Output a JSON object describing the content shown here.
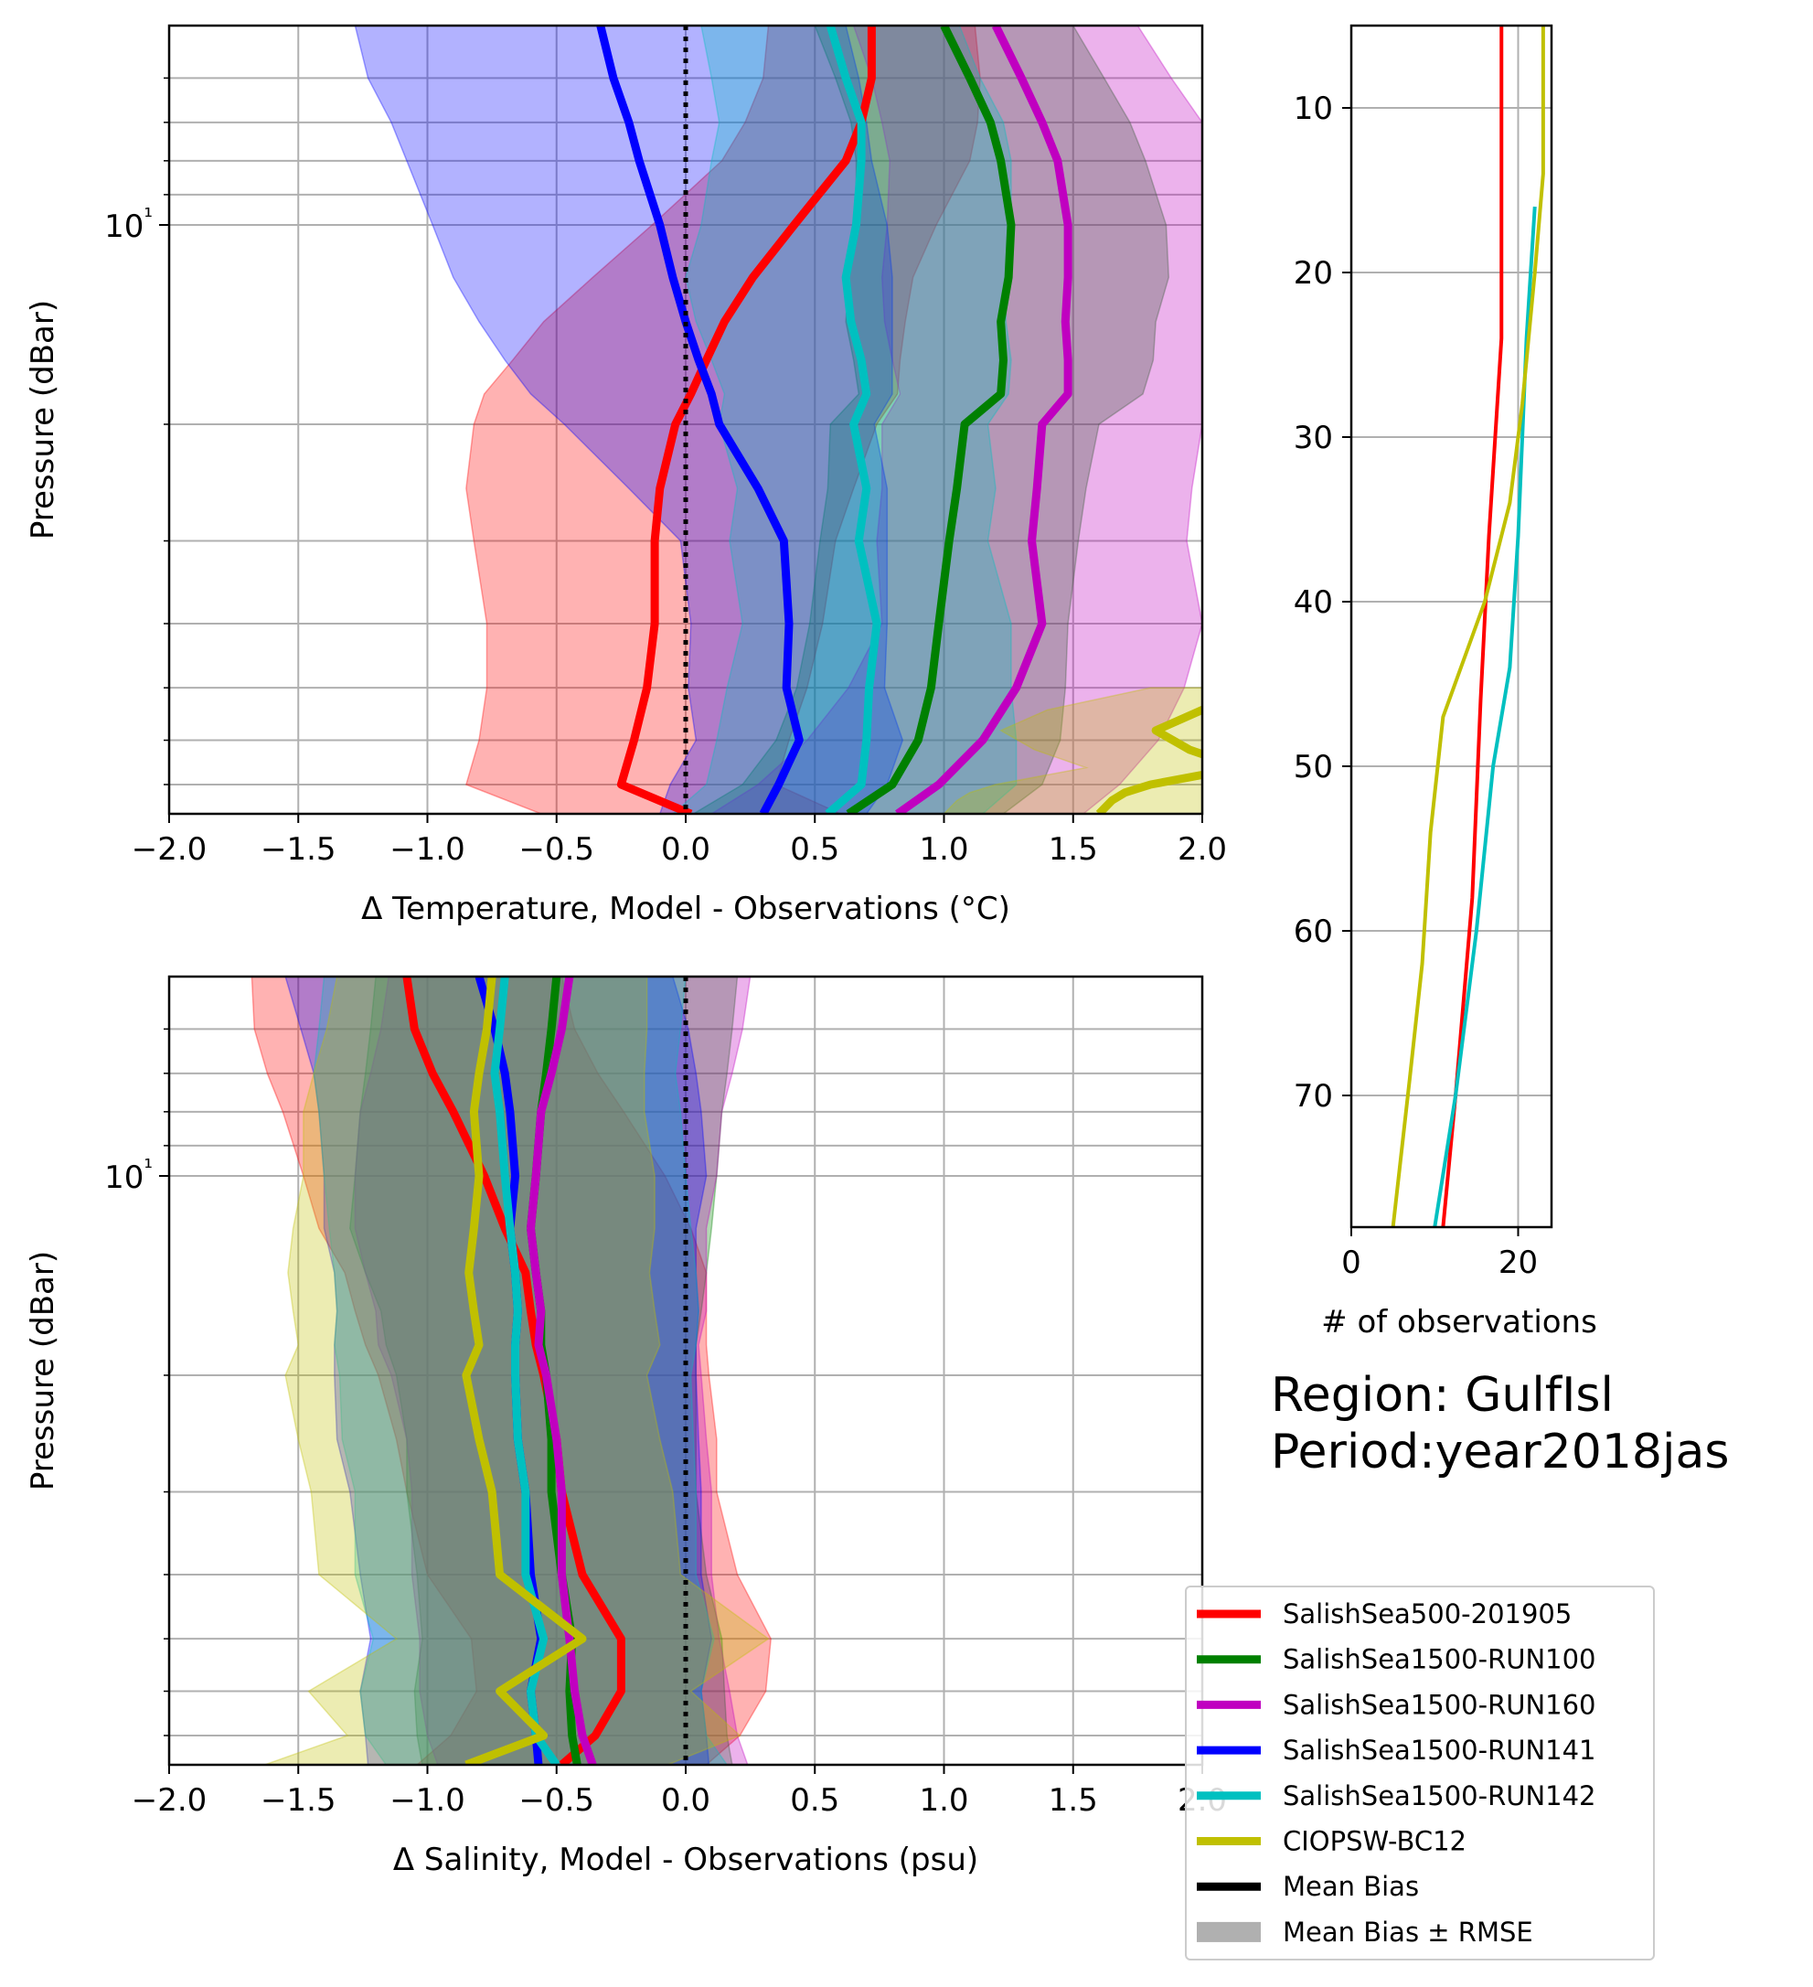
{
  "region_label": "Region: GulfIsl",
  "period_label": "Period:year2018jas",
  "legend": {
    "entries": [
      {
        "label": "SalishSea500-201905",
        "color": "#ff0000",
        "kind": "line"
      },
      {
        "label": "SalishSea1500-RUN100",
        "color": "#008000",
        "kind": "line"
      },
      {
        "label": "SalishSea1500-RUN160",
        "color": "#c000c0",
        "kind": "line"
      },
      {
        "label": "SalishSea1500-RUN141",
        "color": "#0000ff",
        "kind": "line"
      },
      {
        "label": "SalishSea1500-RUN142",
        "color": "#00c0c0",
        "kind": "line"
      },
      {
        "label": "CIOPSW-BC12",
        "color": "#c0c000",
        "kind": "line"
      },
      {
        "label": "Mean Bias",
        "color": "#000000",
        "kind": "line"
      },
      {
        "label": "Mean Bias ± RMSE",
        "color": "#b0b0b0",
        "kind": "patch"
      }
    ]
  },
  "chart_data": [
    {
      "type": "line",
      "xlabel": "Δ Temperature, Model - Observations (°C)",
      "ylabel": "Pressure (dBar)",
      "xlim": [
        -2.0,
        2.0
      ],
      "ylim": [
        77.5,
        5.0
      ],
      "yscale": "log",
      "ytick_label": "10¹",
      "xticks": [
        -2.0,
        -1.5,
        -1.0,
        -0.5,
        0.0,
        0.5,
        1.0,
        1.5,
        2.0
      ],
      "xtick_labels": [
        "−2.0",
        "−1.5",
        "−1.0",
        "−0.5",
        "0.0",
        "0.5",
        "1.0",
        "1.5",
        "2.0"
      ],
      "grid": true,
      "reference_line_x": 0.0,
      "series": [
        {
          "name": "SalishSea500-201905",
          "color": "#ff0000",
          "pressure": [
            5,
            6,
            7,
            8,
            10,
            12,
            14,
            16,
            18,
            20,
            25,
            30,
            40,
            50,
            60,
            70,
            77.5
          ],
          "bias": [
            0.72,
            0.72,
            0.68,
            0.62,
            0.42,
            0.26,
            0.15,
            0.08,
            0.02,
            -0.04,
            -0.1,
            -0.12,
            -0.12,
            -0.15,
            -0.2,
            -0.25,
            0.02
          ],
          "rmse": [
            0.4,
            0.42,
            0.45,
            0.48,
            0.55,
            0.62,
            0.7,
            0.75,
            0.8,
            0.78,
            0.75,
            0.7,
            0.65,
            0.62,
            0.6,
            0.6,
            0.58
          ]
        },
        {
          "name": "SalishSea1500-RUN100",
          "color": "#008000",
          "pressure": [
            5,
            6,
            7,
            8,
            10,
            12,
            14,
            16,
            18,
            20,
            25,
            30,
            40,
            50,
            60,
            70,
            77.5
          ],
          "bias": [
            1.0,
            1.1,
            1.18,
            1.22,
            1.26,
            1.25,
            1.22,
            1.23,
            1.22,
            1.08,
            1.05,
            1.02,
            0.98,
            0.95,
            0.9,
            0.8,
            0.63
          ],
          "rmse": [
            0.5,
            0.52,
            0.54,
            0.56,
            0.6,
            0.62,
            0.6,
            0.58,
            0.55,
            0.52,
            0.5,
            0.5,
            0.5,
            0.52,
            0.55,
            0.58,
            0.6
          ]
        },
        {
          "name": "SalishSea1500-RUN160",
          "color": "#c000c0",
          "pressure": [
            5,
            6,
            7,
            8,
            10,
            12,
            14,
            16,
            18,
            20,
            25,
            30,
            40,
            50,
            60,
            70,
            77.5
          ],
          "bias": [
            1.2,
            1.3,
            1.38,
            1.44,
            1.48,
            1.48,
            1.47,
            1.48,
            1.48,
            1.38,
            1.36,
            1.34,
            1.38,
            1.28,
            1.15,
            0.98,
            0.82
          ],
          "rmse": [
            0.55,
            0.58,
            0.62,
            0.65,
            0.7,
            0.72,
            0.7,
            0.68,
            0.65,
            0.62,
            0.6,
            0.6,
            0.62,
            0.65,
            0.68,
            0.7,
            0.72
          ]
        },
        {
          "name": "SalishSea1500-RUN141",
          "color": "#0000ff",
          "pressure": [
            5,
            6,
            7,
            8,
            10,
            12,
            14,
            16,
            18,
            20,
            25,
            30,
            40,
            50,
            60,
            70,
            77.5
          ],
          "bias": [
            -0.33,
            -0.28,
            -0.22,
            -0.18,
            -0.1,
            -0.05,
            0.0,
            0.05,
            0.1,
            0.13,
            0.28,
            0.38,
            0.4,
            0.39,
            0.44,
            0.36,
            0.3
          ],
          "rmse": [
            0.95,
            0.95,
            0.92,
            0.9,
            0.88,
            0.85,
            0.8,
            0.75,
            0.7,
            0.6,
            0.5,
            0.4,
            0.38,
            0.38,
            0.4,
            0.42,
            0.4
          ]
        },
        {
          "name": "SalishSea1500-RUN142",
          "color": "#00c0c0",
          "pressure": [
            5,
            6,
            7,
            8,
            10,
            12,
            14,
            16,
            18,
            20,
            25,
            30,
            40,
            50,
            60,
            70,
            77.5
          ],
          "bias": [
            0.56,
            0.62,
            0.68,
            0.68,
            0.66,
            0.62,
            0.64,
            0.68,
            0.7,
            0.65,
            0.7,
            0.67,
            0.74,
            0.71,
            0.7,
            0.68,
            0.55
          ],
          "rmse": [
            0.5,
            0.52,
            0.55,
            0.58,
            0.6,
            0.62,
            0.6,
            0.58,
            0.55,
            0.52,
            0.5,
            0.5,
            0.52,
            0.55,
            0.58,
            0.6,
            0.6
          ]
        },
        {
          "name": "CIOPSW-BC12",
          "color": "#c0c000",
          "pressure": [
            50,
            54,
            58,
            62,
            66,
            70,
            72,
            74,
            77.5
          ],
          "bias": [
            2.4,
            2.0,
            1.82,
            1.95,
            2.15,
            1.8,
            1.7,
            1.65,
            1.6
          ],
          "rmse": [
            0.6,
            0.6,
            0.6,
            0.6,
            0.6,
            0.6,
            0.6,
            0.6,
            0.6
          ]
        }
      ]
    },
    {
      "type": "line",
      "xlabel": "Δ Salinity, Model - Observations (psu)",
      "ylabel": "Pressure (dBar)",
      "xlim": [
        -2.0,
        2.0
      ],
      "ylim": [
        77.5,
        5.0
      ],
      "yscale": "log",
      "ytick_label": "10¹",
      "xticks": [
        -2.0,
        -1.5,
        -1.0,
        -0.5,
        0.0,
        0.5,
        1.0,
        1.5,
        2.0
      ],
      "xtick_labels": [
        "−2.0",
        "−1.5",
        "−1.0",
        "−0.5",
        "0.0",
        "0.5",
        "1.0",
        "1.5",
        "2.0"
      ],
      "grid": true,
      "reference_line_x": 0.0,
      "series": [
        {
          "name": "SalishSea500-201905",
          "color": "#ff0000",
          "pressure": [
            5,
            6,
            7,
            8,
            10,
            12,
            14,
            16,
            18,
            20,
            25,
            30,
            40,
            50,
            60,
            70,
            77.5
          ],
          "bias": [
            -1.08,
            -1.05,
            -0.98,
            -0.9,
            -0.78,
            -0.7,
            -0.62,
            -0.6,
            -0.58,
            -0.55,
            -0.5,
            -0.48,
            -0.4,
            -0.25,
            -0.25,
            -0.35,
            -0.48
          ],
          "rmse": [
            0.6,
            0.62,
            0.64,
            0.66,
            0.7,
            0.72,
            0.7,
            0.68,
            0.66,
            0.64,
            0.62,
            0.6,
            0.6,
            0.58,
            0.56,
            0.56,
            0.56
          ]
        },
        {
          "name": "SalishSea1500-RUN100",
          "color": "#008000",
          "pressure": [
            5,
            6,
            7,
            8,
            10,
            12,
            14,
            16,
            18,
            20,
            25,
            30,
            40,
            50,
            60,
            70,
            77.5
          ],
          "bias": [
            -0.5,
            -0.52,
            -0.54,
            -0.56,
            -0.58,
            -0.6,
            -0.58,
            -0.56,
            -0.56,
            -0.54,
            -0.52,
            -0.52,
            -0.48,
            -0.44,
            -0.45,
            -0.44,
            -0.42
          ],
          "rmse": [
            0.7,
            0.7,
            0.7,
            0.7,
            0.7,
            0.7,
            0.66,
            0.62,
            0.6,
            0.58,
            0.56,
            0.56,
            0.56,
            0.58,
            0.6,
            0.6,
            0.6
          ]
        },
        {
          "name": "SalishSea1500-RUN160",
          "color": "#c000c0",
          "pressure": [
            5,
            6,
            7,
            8,
            10,
            12,
            14,
            16,
            18,
            20,
            25,
            30,
            40,
            50,
            60,
            70,
            77.5
          ],
          "bias": [
            -0.45,
            -0.48,
            -0.52,
            -0.56,
            -0.58,
            -0.6,
            -0.58,
            -0.56,
            -0.57,
            -0.54,
            -0.5,
            -0.48,
            -0.48,
            -0.45,
            -0.43,
            -0.4,
            -0.36
          ],
          "rmse": [
            0.7,
            0.7,
            0.7,
            0.7,
            0.7,
            0.68,
            0.66,
            0.64,
            0.62,
            0.6,
            0.58,
            0.58,
            0.58,
            0.58,
            0.6,
            0.6,
            0.6
          ]
        },
        {
          "name": "SalishSea1500-RUN141",
          "color": "#0000ff",
          "pressure": [
            5,
            6,
            7,
            8,
            10,
            12,
            14,
            16,
            18,
            20,
            25,
            30,
            40,
            50,
            60,
            70,
            77.5
          ],
          "bias": [
            -0.8,
            -0.74,
            -0.7,
            -0.68,
            -0.66,
            -0.68,
            -0.66,
            -0.65,
            -0.66,
            -0.66,
            -0.65,
            -0.62,
            -0.6,
            -0.56,
            -0.6,
            -0.58,
            -0.57
          ],
          "rmse": [
            0.75,
            0.75,
            0.74,
            0.74,
            0.74,
            0.72,
            0.7,
            0.7,
            0.7,
            0.7,
            0.7,
            0.68,
            0.66,
            0.66,
            0.66,
            0.66,
            0.66
          ]
        },
        {
          "name": "SalishSea1500-RUN142",
          "color": "#00c0c0",
          "pressure": [
            5,
            6,
            7,
            8,
            10,
            12,
            14,
            16,
            18,
            20,
            25,
            30,
            40,
            50,
            60,
            70,
            77.5
          ],
          "bias": [
            -0.7,
            -0.72,
            -0.74,
            -0.72,
            -0.7,
            -0.68,
            -0.66,
            -0.65,
            -0.66,
            -0.66,
            -0.65,
            -0.62,
            -0.62,
            -0.55,
            -0.6,
            -0.58,
            -0.5
          ],
          "rmse": [
            0.7,
            0.7,
            0.7,
            0.7,
            0.7,
            0.7,
            0.7,
            0.7,
            0.7,
            0.68,
            0.68,
            0.66,
            0.66,
            0.66,
            0.66,
            0.66,
            0.66
          ]
        },
        {
          "name": "CIOPSW-BC12",
          "color": "#c0c000",
          "pressure": [
            5,
            6,
            7,
            8,
            10,
            12,
            14,
            16,
            18,
            20,
            25,
            30,
            40,
            50,
            60,
            70,
            77.5
          ],
          "bias": [
            -0.75,
            -0.77,
            -0.8,
            -0.82,
            -0.8,
            -0.82,
            -0.84,
            -0.82,
            -0.8,
            -0.85,
            -0.8,
            -0.75,
            -0.72,
            -0.4,
            -0.72,
            -0.55,
            -0.85
          ],
          "rmse": [
            0.6,
            0.62,
            0.64,
            0.66,
            0.68,
            0.7,
            0.7,
            0.7,
            0.7,
            0.7,
            0.7,
            0.7,
            0.7,
            0.72,
            0.74,
            0.76,
            0.78
          ]
        }
      ]
    },
    {
      "type": "line",
      "xlabel": "# of observations",
      "ylabel": "",
      "xlim": [
        0,
        24
      ],
      "ylim": [
        78,
        5
      ],
      "xticks": [
        0,
        20
      ],
      "xtick_labels": [
        "0",
        "20"
      ],
      "yticks": [
        10,
        20,
        30,
        40,
        50,
        60,
        70
      ],
      "ytick_labels": [
        "10",
        "20",
        "30",
        "40",
        "50",
        "60",
        "70"
      ],
      "grid": true,
      "series": [
        {
          "name": "SalishSea500-201905",
          "color": "#ff0000",
          "pressure": [
            5,
            14,
            24,
            28,
            36,
            46,
            58,
            70,
            78
          ],
          "count": [
            18,
            18,
            18,
            17.5,
            16.5,
            15.5,
            14.5,
            12.5,
            11
          ]
        },
        {
          "name": "SalishSea1500-RUN142",
          "color": "#00c0c0",
          "pressure": [
            16,
            20,
            24,
            30,
            36,
            44,
            50,
            60,
            70,
            78
          ],
          "count": [
            22,
            21.5,
            21,
            20.5,
            20,
            19,
            17,
            15,
            12.5,
            10
          ]
        },
        {
          "name": "CIOPSW-BC12",
          "color": "#c0c000",
          "pressure": [
            5,
            14,
            20,
            28,
            34,
            40,
            47,
            54,
            62,
            69,
            78
          ],
          "count": [
            23,
            23,
            22,
            20.5,
            19,
            16,
            11,
            9.5,
            8.5,
            7,
            5
          ]
        }
      ]
    }
  ]
}
